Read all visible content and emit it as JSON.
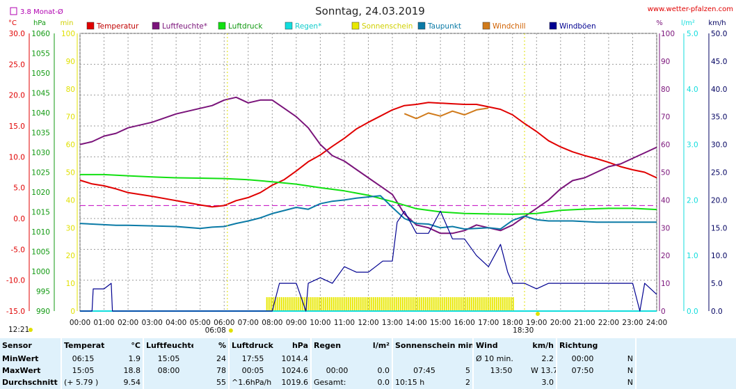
{
  "header": {
    "title": "Sonntag, 24.03.2019",
    "site": "www.wetter-pfalzen.com",
    "rain_month_total": "3.8 Monat-Ø"
  },
  "colors": {
    "temperature": "#e00000",
    "humidity": "#7a137a",
    "pressure": "#11e011",
    "rain": "#11dddd",
    "sunshine": "#e8e800",
    "dewpoint": "#0a7aa6",
    "windchill": "#d07a1a",
    "gust": "#000090"
  },
  "chart_data": {
    "type": "line",
    "title": "Sonntag, 24.03.2019",
    "legend": [
      "Temperatur",
      "Luftfeuchte*",
      "Luftdruck",
      "Regen*",
      "Sonnenschein",
      "Taupunkt",
      "Windchill",
      "Windböen"
    ],
    "axes": {
      "temperature": {
        "label": "°C",
        "min": -15,
        "max": 30,
        "ticks": [
          "30.0",
          "25.0",
          "20.0",
          "15.0",
          "10.0",
          "5.0",
          "0.0",
          "-5.0",
          "-10.0",
          "-15.0"
        ]
      },
      "pressure": {
        "label": "hPa",
        "min": 990,
        "max": 1060,
        "ticks": [
          "1060",
          "1055",
          "1050",
          "1045",
          "1040",
          "1035",
          "1030",
          "1025",
          "1020",
          "1015",
          "1010",
          "1005",
          "1000",
          "995",
          "990"
        ]
      },
      "sunshine": {
        "label": "min",
        "min": 0,
        "max": 100,
        "ticks": [
          "100",
          "90",
          "80",
          "70",
          "60",
          "50",
          "40",
          "30",
          "20",
          "10",
          "0"
        ]
      },
      "humidity": {
        "label": "%",
        "min": 0,
        "max": 100,
        "ticks": [
          "100",
          "90",
          "80",
          "70",
          "60",
          "50",
          "40",
          "30",
          "20",
          "10",
          "0"
        ]
      },
      "rain": {
        "label": "l/m²",
        "min": 0,
        "max": 5,
        "ticks": [
          "5.0",
          "4.0",
          "3.0",
          "2.0",
          "1.0",
          "0.0"
        ]
      },
      "wind": {
        "label": "km/h",
        "min": 0,
        "max": 50,
        "ticks": [
          "50.0",
          "45.0",
          "40.0",
          "35.0",
          "30.0",
          "25.0",
          "20.0",
          "15.0",
          "10.0",
          "5.0",
          "0.0"
        ]
      },
      "x": {
        "label": "",
        "ticks": [
          "00:00",
          "01:00",
          "02:00",
          "03:00",
          "04:00",
          "05:00",
          "06:00",
          "07:00",
          "08:00",
          "09:00",
          "10:00",
          "11:00",
          "12:00",
          "13:00",
          "14:00",
          "15:00",
          "16:00",
          "17:00",
          "18:00",
          "19:00",
          "20:00",
          "21:00",
          "22:00",
          "23:00",
          "24:00"
        ]
      }
    },
    "sunrise": "06:08",
    "sunset": "18:30",
    "current_time": "12:21",
    "rain_month_line": 1.9,
    "series": [
      {
        "name": "Temperatur",
        "axis": "temperature",
        "x": [
          0,
          0.5,
          1,
          1.5,
          2,
          3,
          4,
          5,
          5.5,
          6,
          6.5,
          7,
          7.5,
          8,
          8.5,
          9,
          9.5,
          10,
          10.5,
          11,
          11.5,
          12,
          12.5,
          13,
          13.5,
          14,
          14.5,
          15,
          15.5,
          16,
          16.5,
          17,
          17.5,
          18,
          18.5,
          19,
          19.5,
          20,
          20.5,
          21,
          21.5,
          22,
          22.5,
          23,
          23.5,
          24
        ],
        "y": [
          6.2,
          5.6,
          5.3,
          4.8,
          4.2,
          3.6,
          2.9,
          2.2,
          1.9,
          2.1,
          2.9,
          3.4,
          4.2,
          5.4,
          6.3,
          7.7,
          9.2,
          10.3,
          11.7,
          13.0,
          14.5,
          15.6,
          16.6,
          17.6,
          18.3,
          18.5,
          18.8,
          18.7,
          18.6,
          18.5,
          18.5,
          18.1,
          17.7,
          16.8,
          15.4,
          14.1,
          12.6,
          11.6,
          10.8,
          10.2,
          9.7,
          9.1,
          8.4,
          7.9,
          7.5,
          6.6
        ]
      },
      {
        "name": "Luftfeuchte*",
        "axis": "humidity",
        "x": [
          0,
          0.5,
          1,
          1.5,
          2,
          3,
          4,
          5,
          5.5,
          6,
          6.5,
          7,
          7.5,
          8,
          8.5,
          9,
          9.5,
          10,
          10.5,
          11,
          11.5,
          12,
          12.5,
          13,
          13.5,
          14,
          14.5,
          15,
          15.5,
          16,
          16.5,
          17,
          17.5,
          18,
          18.5,
          19,
          19.5,
          20,
          20.5,
          21,
          21.5,
          22,
          22.5,
          23,
          23.5,
          24
        ],
        "y": [
          60,
          61,
          63,
          64,
          66,
          68,
          71,
          73,
          74,
          76,
          77,
          75,
          76,
          76,
          73,
          70,
          66,
          60,
          56,
          54,
          51,
          48,
          45,
          42,
          35,
          31,
          30,
          28,
          28,
          29,
          31,
          30,
          29,
          31,
          34,
          37,
          40,
          44,
          47,
          48,
          50,
          52,
          53,
          55,
          57,
          59
        ]
      },
      {
        "name": "Luftdruck",
        "axis": "pressure",
        "x": [
          0,
          1,
          2,
          3,
          4,
          5,
          6,
          7,
          8,
          9,
          10,
          11,
          12,
          13,
          14,
          15,
          16,
          17,
          18,
          19,
          20,
          21,
          22,
          23,
          24
        ],
        "y": [
          1024.4,
          1024.4,
          1024.1,
          1023.8,
          1023.6,
          1023.5,
          1023.4,
          1023.1,
          1022.6,
          1022.0,
          1021.1,
          1020.3,
          1019.2,
          1017.6,
          1015.8,
          1015.0,
          1014.6,
          1014.5,
          1014.4,
          1014.6,
          1015.4,
          1015.7,
          1015.9,
          1015.9,
          1015.6
        ]
      },
      {
        "name": "Taupunkt",
        "axis": "temperature",
        "x": [
          0,
          0.5,
          1,
          1.5,
          2,
          3,
          4,
          5,
          5.5,
          6,
          6.5,
          7,
          7.5,
          8,
          8.5,
          9,
          9.5,
          10,
          10.5,
          11,
          11.5,
          12,
          12.5,
          13,
          13.5,
          14,
          14.5,
          15,
          15.5,
          16,
          16.5,
          17,
          17.5,
          18,
          18.5,
          19,
          19.5,
          20,
          20.5,
          21,
          21.5,
          22,
          22.5,
          23,
          23.5,
          24
        ],
        "y": [
          -0.8,
          -0.9,
          -1.0,
          -1.1,
          -1.1,
          -1.2,
          -1.3,
          -1.6,
          -1.4,
          -1.3,
          -0.8,
          -0.4,
          0.1,
          0.8,
          1.3,
          1.8,
          1.5,
          2.4,
          2.8,
          3.0,
          3.3,
          3.5,
          3.7,
          1.8,
          0.0,
          -0.8,
          -0.9,
          -1.5,
          -1.3,
          -1.7,
          -1.6,
          -1.5,
          -1.7,
          -0.3,
          0.4,
          -0.2,
          -0.4,
          -0.4,
          -0.4,
          -0.5,
          -0.6,
          -0.6,
          -0.6,
          -0.6,
          -0.6,
          -0.6
        ]
      },
      {
        "name": "Windchill",
        "axis": "temperature",
        "x": [
          13.5,
          14,
          14.5,
          15,
          15.5,
          16,
          16.5,
          17
        ],
        "y": [
          17.0,
          16.2,
          17.1,
          16.6,
          17.4,
          16.8,
          17.6,
          17.9
        ]
      },
      {
        "name": "Windböen",
        "axis": "wind",
        "x": [
          0,
          0.5,
          0.55,
          1,
          1.3,
          1.35,
          8,
          8.3,
          9,
          9.4,
          9.5,
          10,
          10.5,
          11,
          11.5,
          12,
          12.3,
          12.6,
          13,
          13.2,
          13.5,
          14,
          14.5,
          15,
          15.5,
          16,
          16.5,
          17,
          17.5,
          17.8,
          18,
          18.5,
          19,
          19.5,
          20,
          20.5,
          21,
          21.5,
          22,
          22.5,
          23,
          23.3,
          23.5,
          24
        ],
        "y": [
          0,
          0,
          4,
          4,
          5,
          0,
          0,
          5,
          5,
          0,
          5,
          6,
          5,
          8,
          7,
          7,
          8,
          9,
          9,
          16,
          18,
          14,
          14,
          18,
          13,
          13,
          10,
          8,
          12,
          7,
          5,
          5,
          4,
          5,
          5,
          5,
          5,
          5,
          5,
          5,
          5,
          0,
          5,
          3
        ]
      },
      {
        "name": "Sonnenschein",
        "axis": "sunshine",
        "x": [
          7.75,
          18.0
        ],
        "y": [
          5,
          5
        ]
      }
    ]
  },
  "stats": {
    "headers": [
      "Sensor",
      "Temperatur",
      "°C",
      "Luftfeuchte",
      "%",
      "Luftdruck",
      "hPa",
      "Regen",
      "l/m²",
      "Sonnenschein min",
      "Wind",
      "km/h",
      "Richtung"
    ],
    "min": {
      "label": "MinWert",
      "temp_time": "06:15",
      "temp": "1.9",
      "hum_time": "15:05",
      "hum": "24",
      "press_time": "17:55",
      "press": "1014.4",
      "rain_time": "",
      "rain": "",
      "sun_time": "",
      "sun": "",
      "wind_label": "Ø 10 min.",
      "wind": "2.2",
      "dir_time": "00:00",
      "dir": "N"
    },
    "max": {
      "label": "MaxWert",
      "temp_time": "15:05",
      "temp": "18.8",
      "hum_time": "08:00",
      "hum": "78",
      "press_time": "00:05",
      "press": "1024.6",
      "rain_time": "00:00",
      "rain": "0.0",
      "sun_time": "07:45",
      "sun": "5",
      "wind_label": "13:50",
      "wind": "W 13.7",
      "dir_time": "07:50",
      "dir": "N"
    },
    "avg": {
      "label": "Durchschnitt",
      "temp_time": "(+ 5.79 )",
      "temp": "9.54",
      "hum_time": "",
      "hum": "55",
      "press_time": "^1.6hPa/h",
      "press": "1019.6",
      "rain_time": "Gesamt:",
      "rain": "0.0",
      "sun_time": "10:15 h",
      "sun": "2",
      "wind_label": "",
      "wind": "3.0",
      "dir_time": "",
      "dir": "N"
    }
  }
}
